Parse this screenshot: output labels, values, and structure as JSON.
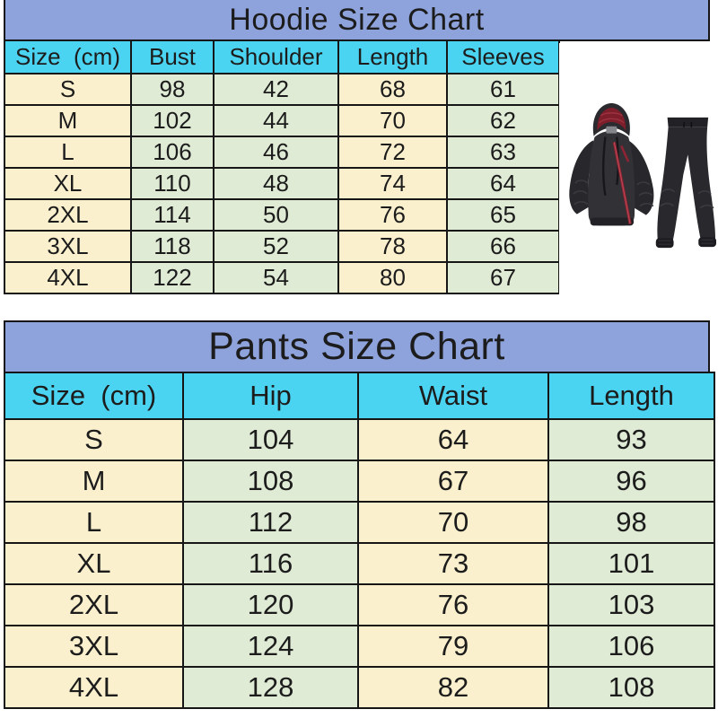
{
  "chart_data": [
    {
      "type": "table",
      "title": "Hoodie Size Chart",
      "columns": [
        "Size  (cm)",
        "Bust",
        "Shoulder",
        "Length",
        "Sleeves"
      ],
      "rows": [
        [
          "S",
          "98",
          "42",
          "68",
          "61"
        ],
        [
          "M",
          "102",
          "44",
          "70",
          "62"
        ],
        [
          "L",
          "106",
          "46",
          "72",
          "63"
        ],
        [
          "XL",
          "110",
          "48",
          "74",
          "64"
        ],
        [
          "2XL",
          "114",
          "50",
          "76",
          "65"
        ],
        [
          "3XL",
          "118",
          "52",
          "78",
          "66"
        ],
        [
          "4XL",
          "122",
          "54",
          "80",
          "67"
        ]
      ],
      "col_colors": [
        "cream",
        "green",
        "green",
        "cream",
        "green"
      ],
      "legend_position": "none",
      "grid": true
    },
    {
      "type": "table",
      "title": "Pants Size Chart",
      "columns": [
        "Size  (cm)",
        "Hip",
        "Waist",
        "Length"
      ],
      "rows": [
        [
          "S",
          "104",
          "64",
          "93"
        ],
        [
          "M",
          "108",
          "67",
          "96"
        ],
        [
          "L",
          "112",
          "70",
          "98"
        ],
        [
          "XL",
          "116",
          "73",
          "101"
        ],
        [
          "2XL",
          "120",
          "76",
          "103"
        ],
        [
          "3XL",
          "124",
          "79",
          "106"
        ],
        [
          "4XL",
          "128",
          "82",
          "108"
        ]
      ],
      "col_colors": [
        "cream",
        "green",
        "cream",
        "green"
      ],
      "legend_position": "none",
      "grid": true
    }
  ],
  "colors": {
    "title_bar": "#8EA2DB",
    "header_cell": "#4BD4F1",
    "cell_cream": "#FAF0CD",
    "cell_green": "#DFEBD5",
    "border": "#161616",
    "garment_dark": "#2c2c31",
    "garment_accent_red": "#8e2433"
  },
  "product_image": {
    "description": "black hoodie with red hood lining and diagonal red zipper, with black jogger pants"
  }
}
